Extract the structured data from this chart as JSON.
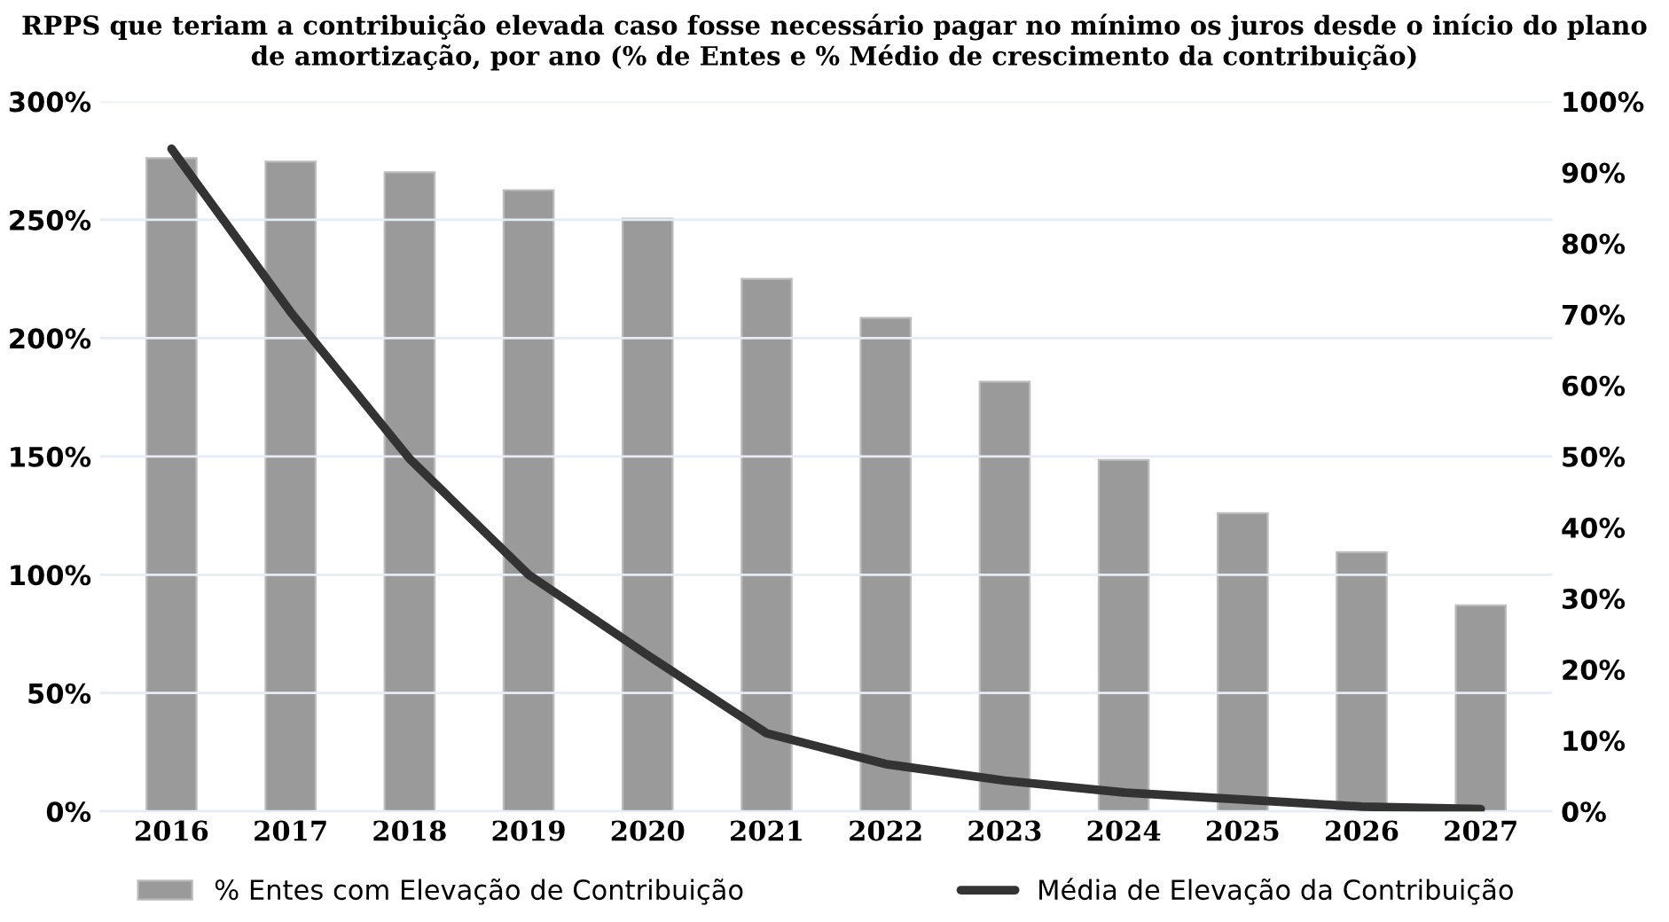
{
  "chart_data": {
    "type": "bar",
    "title": "RPPS que teriam a contribuição elevada caso fosse necessário pagar no mínimo os juros desde o início do plano de amortização, por ano (% de Entes e % Médio de crescimento da contribuição)",
    "categories": [
      "2016",
      "2017",
      "2018",
      "2019",
      "2020",
      "2021",
      "2022",
      "2023",
      "2024",
      "2025",
      "2026",
      "2027"
    ],
    "series": [
      {
        "name": "% Entes com Elevação de Contribuição",
        "axis": "y2",
        "color": "#9a9a9a",
        "values": [
          92,
          91.5,
          90,
          87.5,
          83.5,
          75,
          69.5,
          60.5,
          49.5,
          42,
          36.5,
          29
        ]
      },
      {
        "name": "Média de Elevação da Contribuição",
        "type": "line",
        "color": "#333333",
        "values": [
          280,
          211,
          149,
          100,
          66,
          33,
          20,
          13,
          8,
          5,
          2,
          1
        ]
      }
    ],
    "ylim": [
      0,
      300
    ],
    "yticks": [
      {
        "value": 0,
        "label": "0%"
      },
      {
        "value": 50,
        "label": "50%"
      },
      {
        "value": 100,
        "label": "100%"
      },
      {
        "value": 150,
        "label": "150%"
      },
      {
        "value": 200,
        "label": "200%"
      },
      {
        "value": 250,
        "label": "250%"
      },
      {
        "value": 300,
        "label": "300%"
      }
    ],
    "y2lim": [
      0,
      100
    ],
    "y2ticks": [
      {
        "value": 0,
        "label": "0%"
      },
      {
        "value": 10,
        "label": "10%"
      },
      {
        "value": 20,
        "label": "20%"
      },
      {
        "value": 30,
        "label": "30%"
      },
      {
        "value": 40,
        "label": "40%"
      },
      {
        "value": 50,
        "label": "50%"
      },
      {
        "value": 60,
        "label": "60%"
      },
      {
        "value": 70,
        "label": "70%"
      },
      {
        "value": 80,
        "label": "80%"
      },
      {
        "value": 90,
        "label": "90%"
      },
      {
        "value": 100,
        "label": "100%"
      }
    ],
    "grid": "y",
    "legend": "bottom",
    "marker": "none",
    "line_style": "solid"
  }
}
